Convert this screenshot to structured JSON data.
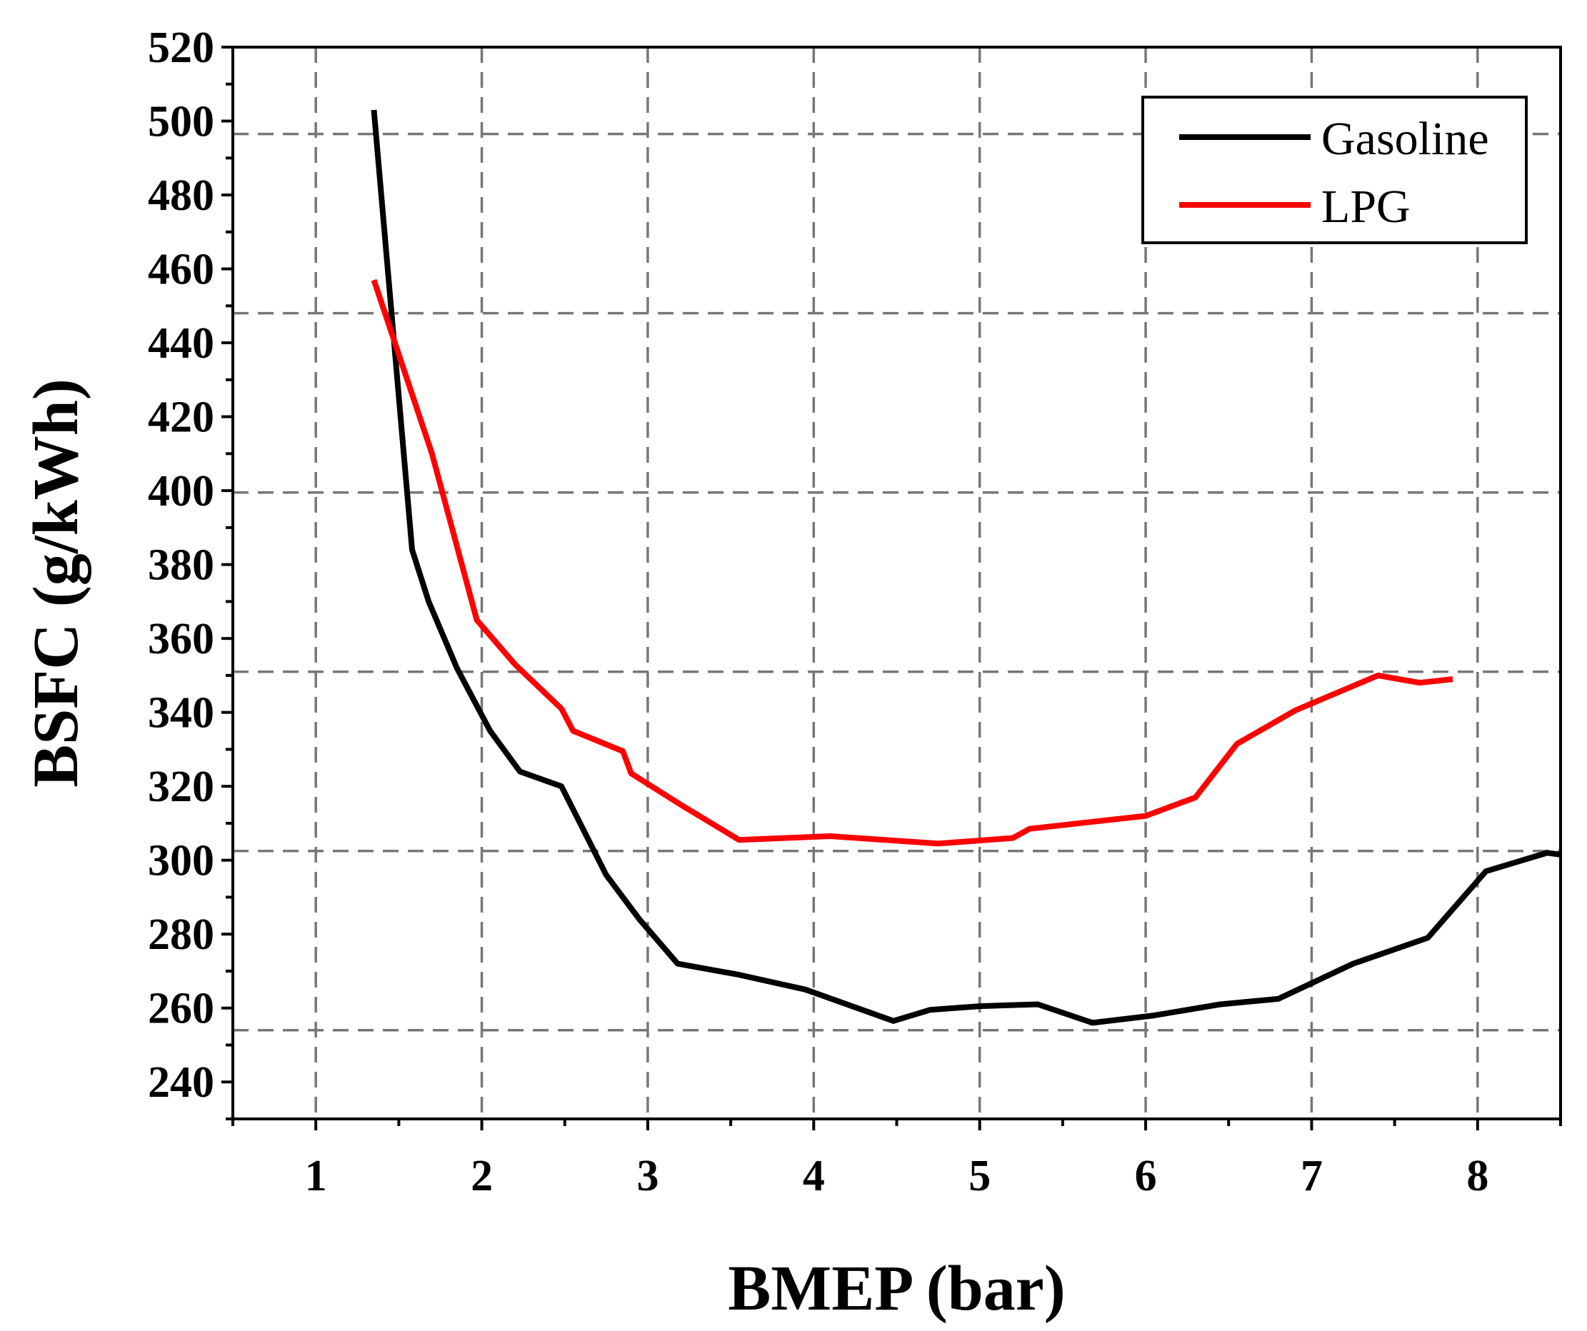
{
  "chart_data": {
    "type": "line",
    "title": "",
    "xlabel": "BMEP (bar)",
    "ylabel": "BSFC (g/kWh)",
    "xlim": [
      0.5,
      8.5
    ],
    "ylim": [
      230,
      520
    ],
    "xticks": [
      1,
      2,
      3,
      4,
      5,
      6,
      7,
      8
    ],
    "yticks": [
      240,
      260,
      280,
      300,
      320,
      340,
      360,
      380,
      400,
      420,
      440,
      460,
      480,
      500,
      520
    ],
    "grid": "dashed",
    "legend_position": "top-right",
    "series": [
      {
        "name": "Gasoline",
        "color": "#000000",
        "points": [
          [
            1.35,
            503
          ],
          [
            1.58,
            384
          ],
          [
            1.68,
            370
          ],
          [
            1.85,
            352
          ],
          [
            2.05,
            335
          ],
          [
            2.23,
            324
          ],
          [
            2.48,
            320
          ],
          [
            2.75,
            296
          ],
          [
            2.95,
            284
          ],
          [
            3.18,
            272
          ],
          [
            3.55,
            269
          ],
          [
            3.95,
            265
          ],
          [
            4.48,
            256.5
          ],
          [
            4.7,
            259.5
          ],
          [
            5.0,
            260.5
          ],
          [
            5.35,
            261
          ],
          [
            5.68,
            256
          ],
          [
            6.05,
            258
          ],
          [
            6.45,
            261
          ],
          [
            6.8,
            262.5
          ],
          [
            7.25,
            272
          ],
          [
            7.7,
            279
          ],
          [
            8.05,
            297
          ],
          [
            8.42,
            302
          ],
          [
            8.5,
            301.5
          ]
        ]
      },
      {
        "name": "LPG",
        "color": "#ff0000",
        "points": [
          [
            1.35,
            457
          ],
          [
            1.7,
            410
          ],
          [
            1.97,
            365
          ],
          [
            2.2,
            353
          ],
          [
            2.48,
            341
          ],
          [
            2.55,
            335
          ],
          [
            2.85,
            329.5
          ],
          [
            2.9,
            323.5
          ],
          [
            3.2,
            315
          ],
          [
            3.55,
            305.5
          ],
          [
            4.1,
            306.5
          ],
          [
            4.75,
            304.5
          ],
          [
            5.2,
            306
          ],
          [
            5.3,
            308.5
          ],
          [
            5.7,
            310.5
          ],
          [
            6.0,
            312
          ],
          [
            6.3,
            317
          ],
          [
            6.55,
            331.5
          ],
          [
            6.9,
            340.5
          ],
          [
            7.4,
            350
          ],
          [
            7.65,
            348
          ],
          [
            7.85,
            349
          ]
        ]
      }
    ]
  }
}
